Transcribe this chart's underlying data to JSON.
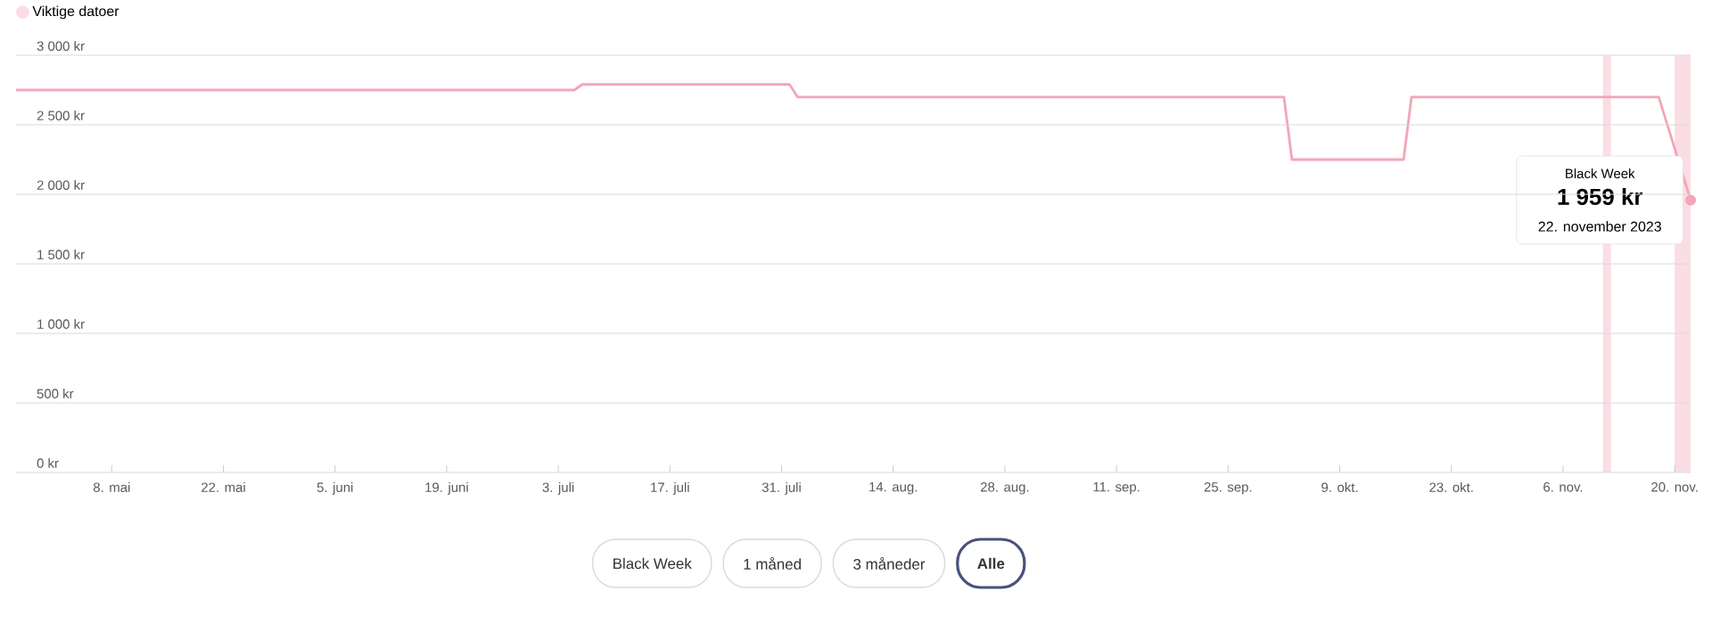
{
  "chart_data": {
    "type": "line",
    "x": [
      "2023-04-26",
      "2023-07-05",
      "2023-07-06",
      "2023-08-01",
      "2023-08-02",
      "2023-10-02",
      "2023-10-03",
      "2023-10-17",
      "2023-10-18",
      "2023-11-18",
      "2023-11-22"
    ],
    "series": [
      {
        "color": "#f2a6b8",
        "values": [
          2750,
          2750,
          2790,
          2790,
          2700,
          2700,
          2250,
          2250,
          2700,
          2700,
          1959
        ]
      }
    ],
    "xlim": [
      "2023-04-26",
      "2023-11-22"
    ],
    "xticks": [
      {
        "value": "2023-05-08",
        "label": "8. mai"
      },
      {
        "value": "2023-05-22",
        "label": "22. mai"
      },
      {
        "value": "2023-06-05",
        "label": "5. juni"
      },
      {
        "value": "2023-06-19",
        "label": "19. juni"
      },
      {
        "value": "2023-07-03",
        "label": "3. juli"
      },
      {
        "value": "2023-07-17",
        "label": "17. juli"
      },
      {
        "value": "2023-07-31",
        "label": "31. juli"
      },
      {
        "value": "2023-08-14",
        "label": "14. aug."
      },
      {
        "value": "2023-08-28",
        "label": "28. aug."
      },
      {
        "value": "2023-09-11",
        "label": "11. sep."
      },
      {
        "value": "2023-09-25",
        "label": "25. sep."
      },
      {
        "value": "2023-10-09",
        "label": "9. okt."
      },
      {
        "value": "2023-10-23",
        "label": "23. okt."
      },
      {
        "value": "2023-11-06",
        "label": "6. nov."
      },
      {
        "value": "2023-11-20",
        "label": "20. nov."
      }
    ],
    "ylim": [
      0,
      3000
    ],
    "yticks": [
      {
        "value": 0,
        "label": "0 kr"
      },
      {
        "value": 500,
        "label": "500 kr"
      },
      {
        "value": 1000,
        "label": "1 000 kr"
      },
      {
        "value": 1500,
        "label": "1 500 kr"
      },
      {
        "value": 2000,
        "label": "2 000 kr"
      },
      {
        "value": 2500,
        "label": "2 500 kr"
      },
      {
        "value": 3000,
        "label": "3 000 kr"
      }
    ],
    "grid": "y",
    "legend": "top left",
    "bands": [
      {
        "axis": "x",
        "from": "2023-11-11",
        "to": "2023-11-12",
        "label": "Viktige datoer",
        "color": "#fbdde4"
      },
      {
        "axis": "x",
        "from": "2023-11-20",
        "to": "2023-11-22",
        "color": "#fbdde4"
      }
    ],
    "annotations": [
      "Black Week",
      {
        "text": "1 959 kr",
        "x": "2023-11-22",
        "y": 1959
      },
      "22. november 2023",
      "Black Week",
      "1 måned",
      "3 måneder",
      "Alle"
    ]
  }
}
